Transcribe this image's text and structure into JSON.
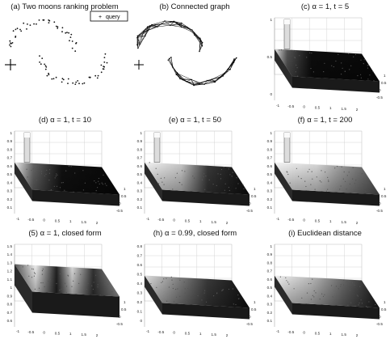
{
  "figure": {
    "panels": [
      {
        "id": "a",
        "title": "(a) Two moons ranking problem",
        "legend_label": "query",
        "legend_marker": "+"
      },
      {
        "id": "b",
        "title": "(b) Connected graph"
      },
      {
        "id": "c",
        "title": "(c) α = 1, t = 5",
        "z_ticks": [
          "1",
          "0.5",
          "0"
        ],
        "x_ticks": [
          "-1",
          "-0.5",
          "0",
          "0.5",
          "1",
          "1.5",
          "2"
        ],
        "y_ticks": [
          "-0.5",
          "0",
          "0.5",
          "1"
        ]
      },
      {
        "id": "d",
        "title": "(d) α = 1, t = 10",
        "z_ticks": [
          "1",
          "0.9",
          "0.8",
          "0.7",
          "0.6",
          "0.5",
          "0.4",
          "0.3",
          "0.2",
          "0.1"
        ],
        "x_ticks": [
          "-1",
          "-0.5",
          "0",
          "0.5",
          "1",
          "1.5",
          "2"
        ],
        "y_ticks": [
          "-0.5",
          "0",
          "0.5",
          "1"
        ]
      },
      {
        "id": "e",
        "title": "(e) α = 1, t = 50",
        "z_ticks": [
          "1",
          "0.9",
          "0.8",
          "0.7",
          "0.6",
          "0.5",
          "0.4",
          "0.3",
          "0.2",
          "0.1"
        ],
        "x_ticks": [
          "-1",
          "-0.5",
          "0",
          "0.5",
          "1",
          "1.5",
          "2"
        ],
        "y_ticks": [
          "-0.5",
          "0",
          "0.5",
          "1"
        ]
      },
      {
        "id": "f",
        "title": "(f) α = 1, t = 200",
        "z_ticks": [
          "1",
          "0.9",
          "0.8",
          "0.7",
          "0.6",
          "0.5",
          "0.4",
          "0.3",
          "0.2",
          "0.1"
        ],
        "x_ticks": [
          "-1",
          "-0.5",
          "0",
          "0.5",
          "1",
          "1.5",
          "2"
        ],
        "y_ticks": [
          "-0.5",
          "0",
          "0.5",
          "1"
        ]
      },
      {
        "id": "g",
        "title": "(5) α = 1, closed form",
        "z_ticks": [
          "1.5",
          "1.4",
          "1.3",
          "1.2",
          "1.1",
          "1",
          "0.9",
          "0.8",
          "0.7",
          "0.6"
        ],
        "x_ticks": [
          "-1",
          "-0.5",
          "0",
          "0.5",
          "1",
          "1.5",
          "2"
        ],
        "y_ticks": [
          "-0.5",
          "0",
          "0.5",
          "1"
        ]
      },
      {
        "id": "h",
        "title": "(h) α = 0.99, closed form",
        "z_ticks": [
          "0.8",
          "0.7",
          "0.6",
          "0.5",
          "0.4",
          "0.3",
          "0.2",
          "0.1",
          "0"
        ],
        "x_ticks": [
          "-1",
          "-0.5",
          "0",
          "0.5",
          "1",
          "1.5",
          "2"
        ],
        "y_ticks": [
          "-0.5",
          "0",
          "0.5",
          "1"
        ]
      },
      {
        "id": "i",
        "title": "(i) Euclidean distance",
        "z_ticks": [
          "1",
          "0.9",
          "0.8",
          "0.7",
          "0.6",
          "0.5",
          "0.4",
          "0.3",
          "0.2",
          "0.1"
        ],
        "x_ticks": [
          "-1",
          "-0.5",
          "0",
          "0.5",
          "1",
          "1.5",
          "2"
        ],
        "y_ticks": [
          "-0.5",
          "0",
          "0.5",
          "1"
        ]
      }
    ]
  },
  "colors": {
    "surface_dark": "#111111",
    "surface_light": "#f2f2f2",
    "points": "#222222",
    "grid": "#bdbdbd"
  }
}
